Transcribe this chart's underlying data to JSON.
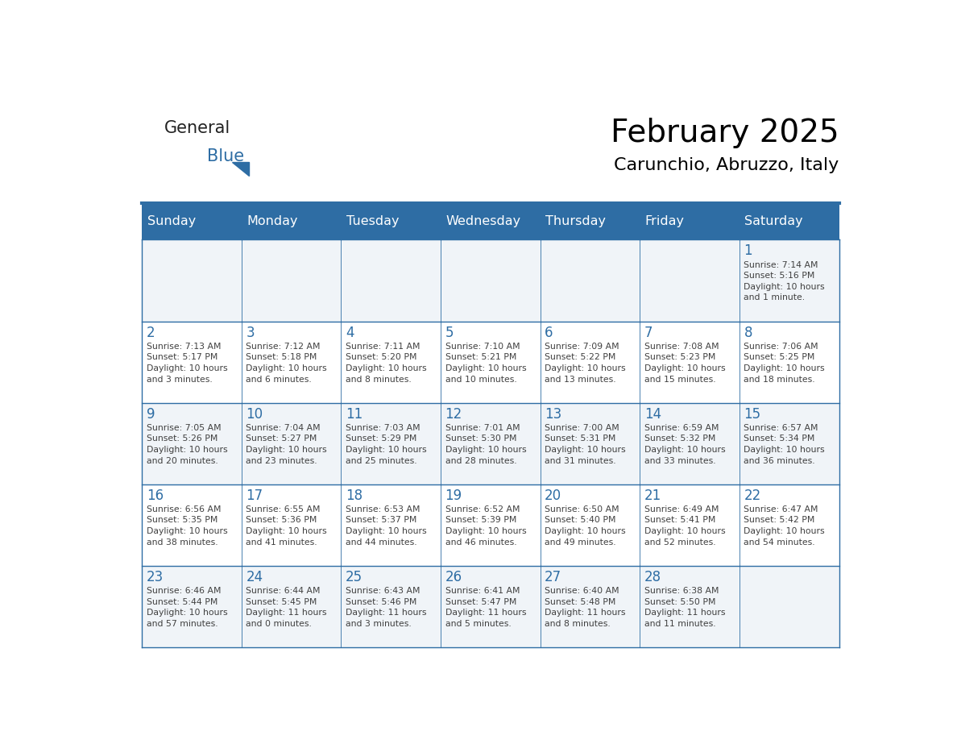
{
  "title": "February 2025",
  "subtitle": "Carunchio, Abruzzo, Italy",
  "header_bg": "#2E6DA4",
  "header_text_color": "#FFFFFF",
  "cell_bg_odd": "#F0F4F8",
  "cell_bg_even": "#FFFFFF",
  "day_number_color": "#2E6DA4",
  "detail_text_color": "#404040",
  "border_color": "#2E6DA4",
  "days_of_week": [
    "Sunday",
    "Monday",
    "Tuesday",
    "Wednesday",
    "Thursday",
    "Friday",
    "Saturday"
  ],
  "weeks": [
    [
      null,
      null,
      null,
      null,
      null,
      null,
      1
    ],
    [
      2,
      3,
      4,
      5,
      6,
      7,
      8
    ],
    [
      9,
      10,
      11,
      12,
      13,
      14,
      15
    ],
    [
      16,
      17,
      18,
      19,
      20,
      21,
      22
    ],
    [
      23,
      24,
      25,
      26,
      27,
      28,
      null
    ]
  ],
  "day_data": {
    "1": {
      "sunrise": "7:14 AM",
      "sunset": "5:16 PM",
      "daylight": "10 hours\nand 1 minute."
    },
    "2": {
      "sunrise": "7:13 AM",
      "sunset": "5:17 PM",
      "daylight": "10 hours\nand 3 minutes."
    },
    "3": {
      "sunrise": "7:12 AM",
      "sunset": "5:18 PM",
      "daylight": "10 hours\nand 6 minutes."
    },
    "4": {
      "sunrise": "7:11 AM",
      "sunset": "5:20 PM",
      "daylight": "10 hours\nand 8 minutes."
    },
    "5": {
      "sunrise": "7:10 AM",
      "sunset": "5:21 PM",
      "daylight": "10 hours\nand 10 minutes."
    },
    "6": {
      "sunrise": "7:09 AM",
      "sunset": "5:22 PM",
      "daylight": "10 hours\nand 13 minutes."
    },
    "7": {
      "sunrise": "7:08 AM",
      "sunset": "5:23 PM",
      "daylight": "10 hours\nand 15 minutes."
    },
    "8": {
      "sunrise": "7:06 AM",
      "sunset": "5:25 PM",
      "daylight": "10 hours\nand 18 minutes."
    },
    "9": {
      "sunrise": "7:05 AM",
      "sunset": "5:26 PM",
      "daylight": "10 hours\nand 20 minutes."
    },
    "10": {
      "sunrise": "7:04 AM",
      "sunset": "5:27 PM",
      "daylight": "10 hours\nand 23 minutes."
    },
    "11": {
      "sunrise": "7:03 AM",
      "sunset": "5:29 PM",
      "daylight": "10 hours\nand 25 minutes."
    },
    "12": {
      "sunrise": "7:01 AM",
      "sunset": "5:30 PM",
      "daylight": "10 hours\nand 28 minutes."
    },
    "13": {
      "sunrise": "7:00 AM",
      "sunset": "5:31 PM",
      "daylight": "10 hours\nand 31 minutes."
    },
    "14": {
      "sunrise": "6:59 AM",
      "sunset": "5:32 PM",
      "daylight": "10 hours\nand 33 minutes."
    },
    "15": {
      "sunrise": "6:57 AM",
      "sunset": "5:34 PM",
      "daylight": "10 hours\nand 36 minutes."
    },
    "16": {
      "sunrise": "6:56 AM",
      "sunset": "5:35 PM",
      "daylight": "10 hours\nand 38 minutes."
    },
    "17": {
      "sunrise": "6:55 AM",
      "sunset": "5:36 PM",
      "daylight": "10 hours\nand 41 minutes."
    },
    "18": {
      "sunrise": "6:53 AM",
      "sunset": "5:37 PM",
      "daylight": "10 hours\nand 44 minutes."
    },
    "19": {
      "sunrise": "6:52 AM",
      "sunset": "5:39 PM",
      "daylight": "10 hours\nand 46 minutes."
    },
    "20": {
      "sunrise": "6:50 AM",
      "sunset": "5:40 PM",
      "daylight": "10 hours\nand 49 minutes."
    },
    "21": {
      "sunrise": "6:49 AM",
      "sunset": "5:41 PM",
      "daylight": "10 hours\nand 52 minutes."
    },
    "22": {
      "sunrise": "6:47 AM",
      "sunset": "5:42 PM",
      "daylight": "10 hours\nand 54 minutes."
    },
    "23": {
      "sunrise": "6:46 AM",
      "sunset": "5:44 PM",
      "daylight": "10 hours\nand 57 minutes."
    },
    "24": {
      "sunrise": "6:44 AM",
      "sunset": "5:45 PM",
      "daylight": "11 hours\nand 0 minutes."
    },
    "25": {
      "sunrise": "6:43 AM",
      "sunset": "5:46 PM",
      "daylight": "11 hours\nand 3 minutes."
    },
    "26": {
      "sunrise": "6:41 AM",
      "sunset": "5:47 PM",
      "daylight": "11 hours\nand 5 minutes."
    },
    "27": {
      "sunrise": "6:40 AM",
      "sunset": "5:48 PM",
      "daylight": "11 hours\nand 8 minutes."
    },
    "28": {
      "sunrise": "6:38 AM",
      "sunset": "5:50 PM",
      "daylight": "11 hours\nand 11 minutes."
    }
  },
  "logo_general_color": "#222222",
  "logo_blue_color": "#2E6DA4",
  "title_fontsize": 28,
  "subtitle_fontsize": 16,
  "header_fontsize": 11.5,
  "day_num_fontsize": 12,
  "detail_fontsize": 7.8
}
